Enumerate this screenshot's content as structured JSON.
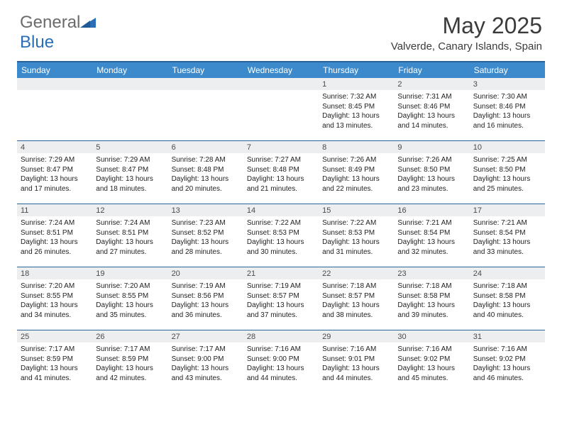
{
  "logo": {
    "text_gray": "General",
    "text_blue": "Blue"
  },
  "title": "May 2025",
  "location": "Valverde, Canary Islands, Spain",
  "colors": {
    "header_bg": "#3c8acb",
    "header_border": "#2a6399",
    "daynum_bg": "#eceeef",
    "text": "#222222",
    "title_text": "#3b3b3b",
    "logo_gray": "#6b6b6b",
    "logo_blue": "#2a6fb5"
  },
  "day_names": [
    "Sunday",
    "Monday",
    "Tuesday",
    "Wednesday",
    "Thursday",
    "Friday",
    "Saturday"
  ],
  "weeks": [
    [
      {
        "n": "",
        "sr": "",
        "ss": "",
        "dl": ""
      },
      {
        "n": "",
        "sr": "",
        "ss": "",
        "dl": ""
      },
      {
        "n": "",
        "sr": "",
        "ss": "",
        "dl": ""
      },
      {
        "n": "",
        "sr": "",
        "ss": "",
        "dl": ""
      },
      {
        "n": "1",
        "sr": "Sunrise: 7:32 AM",
        "ss": "Sunset: 8:45 PM",
        "dl": "Daylight: 13 hours and 13 minutes."
      },
      {
        "n": "2",
        "sr": "Sunrise: 7:31 AM",
        "ss": "Sunset: 8:46 PM",
        "dl": "Daylight: 13 hours and 14 minutes."
      },
      {
        "n": "3",
        "sr": "Sunrise: 7:30 AM",
        "ss": "Sunset: 8:46 PM",
        "dl": "Daylight: 13 hours and 16 minutes."
      }
    ],
    [
      {
        "n": "4",
        "sr": "Sunrise: 7:29 AM",
        "ss": "Sunset: 8:47 PM",
        "dl": "Daylight: 13 hours and 17 minutes."
      },
      {
        "n": "5",
        "sr": "Sunrise: 7:29 AM",
        "ss": "Sunset: 8:47 PM",
        "dl": "Daylight: 13 hours and 18 minutes."
      },
      {
        "n": "6",
        "sr": "Sunrise: 7:28 AM",
        "ss": "Sunset: 8:48 PM",
        "dl": "Daylight: 13 hours and 20 minutes."
      },
      {
        "n": "7",
        "sr": "Sunrise: 7:27 AM",
        "ss": "Sunset: 8:48 PM",
        "dl": "Daylight: 13 hours and 21 minutes."
      },
      {
        "n": "8",
        "sr": "Sunrise: 7:26 AM",
        "ss": "Sunset: 8:49 PM",
        "dl": "Daylight: 13 hours and 22 minutes."
      },
      {
        "n": "9",
        "sr": "Sunrise: 7:26 AM",
        "ss": "Sunset: 8:50 PM",
        "dl": "Daylight: 13 hours and 23 minutes."
      },
      {
        "n": "10",
        "sr": "Sunrise: 7:25 AM",
        "ss": "Sunset: 8:50 PM",
        "dl": "Daylight: 13 hours and 25 minutes."
      }
    ],
    [
      {
        "n": "11",
        "sr": "Sunrise: 7:24 AM",
        "ss": "Sunset: 8:51 PM",
        "dl": "Daylight: 13 hours and 26 minutes."
      },
      {
        "n": "12",
        "sr": "Sunrise: 7:24 AM",
        "ss": "Sunset: 8:51 PM",
        "dl": "Daylight: 13 hours and 27 minutes."
      },
      {
        "n": "13",
        "sr": "Sunrise: 7:23 AM",
        "ss": "Sunset: 8:52 PM",
        "dl": "Daylight: 13 hours and 28 minutes."
      },
      {
        "n": "14",
        "sr": "Sunrise: 7:22 AM",
        "ss": "Sunset: 8:53 PM",
        "dl": "Daylight: 13 hours and 30 minutes."
      },
      {
        "n": "15",
        "sr": "Sunrise: 7:22 AM",
        "ss": "Sunset: 8:53 PM",
        "dl": "Daylight: 13 hours and 31 minutes."
      },
      {
        "n": "16",
        "sr": "Sunrise: 7:21 AM",
        "ss": "Sunset: 8:54 PM",
        "dl": "Daylight: 13 hours and 32 minutes."
      },
      {
        "n": "17",
        "sr": "Sunrise: 7:21 AM",
        "ss": "Sunset: 8:54 PM",
        "dl": "Daylight: 13 hours and 33 minutes."
      }
    ],
    [
      {
        "n": "18",
        "sr": "Sunrise: 7:20 AM",
        "ss": "Sunset: 8:55 PM",
        "dl": "Daylight: 13 hours and 34 minutes."
      },
      {
        "n": "19",
        "sr": "Sunrise: 7:20 AM",
        "ss": "Sunset: 8:55 PM",
        "dl": "Daylight: 13 hours and 35 minutes."
      },
      {
        "n": "20",
        "sr": "Sunrise: 7:19 AM",
        "ss": "Sunset: 8:56 PM",
        "dl": "Daylight: 13 hours and 36 minutes."
      },
      {
        "n": "21",
        "sr": "Sunrise: 7:19 AM",
        "ss": "Sunset: 8:57 PM",
        "dl": "Daylight: 13 hours and 37 minutes."
      },
      {
        "n": "22",
        "sr": "Sunrise: 7:18 AM",
        "ss": "Sunset: 8:57 PM",
        "dl": "Daylight: 13 hours and 38 minutes."
      },
      {
        "n": "23",
        "sr": "Sunrise: 7:18 AM",
        "ss": "Sunset: 8:58 PM",
        "dl": "Daylight: 13 hours and 39 minutes."
      },
      {
        "n": "24",
        "sr": "Sunrise: 7:18 AM",
        "ss": "Sunset: 8:58 PM",
        "dl": "Daylight: 13 hours and 40 minutes."
      }
    ],
    [
      {
        "n": "25",
        "sr": "Sunrise: 7:17 AM",
        "ss": "Sunset: 8:59 PM",
        "dl": "Daylight: 13 hours and 41 minutes."
      },
      {
        "n": "26",
        "sr": "Sunrise: 7:17 AM",
        "ss": "Sunset: 8:59 PM",
        "dl": "Daylight: 13 hours and 42 minutes."
      },
      {
        "n": "27",
        "sr": "Sunrise: 7:17 AM",
        "ss": "Sunset: 9:00 PM",
        "dl": "Daylight: 13 hours and 43 minutes."
      },
      {
        "n": "28",
        "sr": "Sunrise: 7:16 AM",
        "ss": "Sunset: 9:00 PM",
        "dl": "Daylight: 13 hours and 44 minutes."
      },
      {
        "n": "29",
        "sr": "Sunrise: 7:16 AM",
        "ss": "Sunset: 9:01 PM",
        "dl": "Daylight: 13 hours and 44 minutes."
      },
      {
        "n": "30",
        "sr": "Sunrise: 7:16 AM",
        "ss": "Sunset: 9:02 PM",
        "dl": "Daylight: 13 hours and 45 minutes."
      },
      {
        "n": "31",
        "sr": "Sunrise: 7:16 AM",
        "ss": "Sunset: 9:02 PM",
        "dl": "Daylight: 13 hours and 46 minutes."
      }
    ]
  ]
}
